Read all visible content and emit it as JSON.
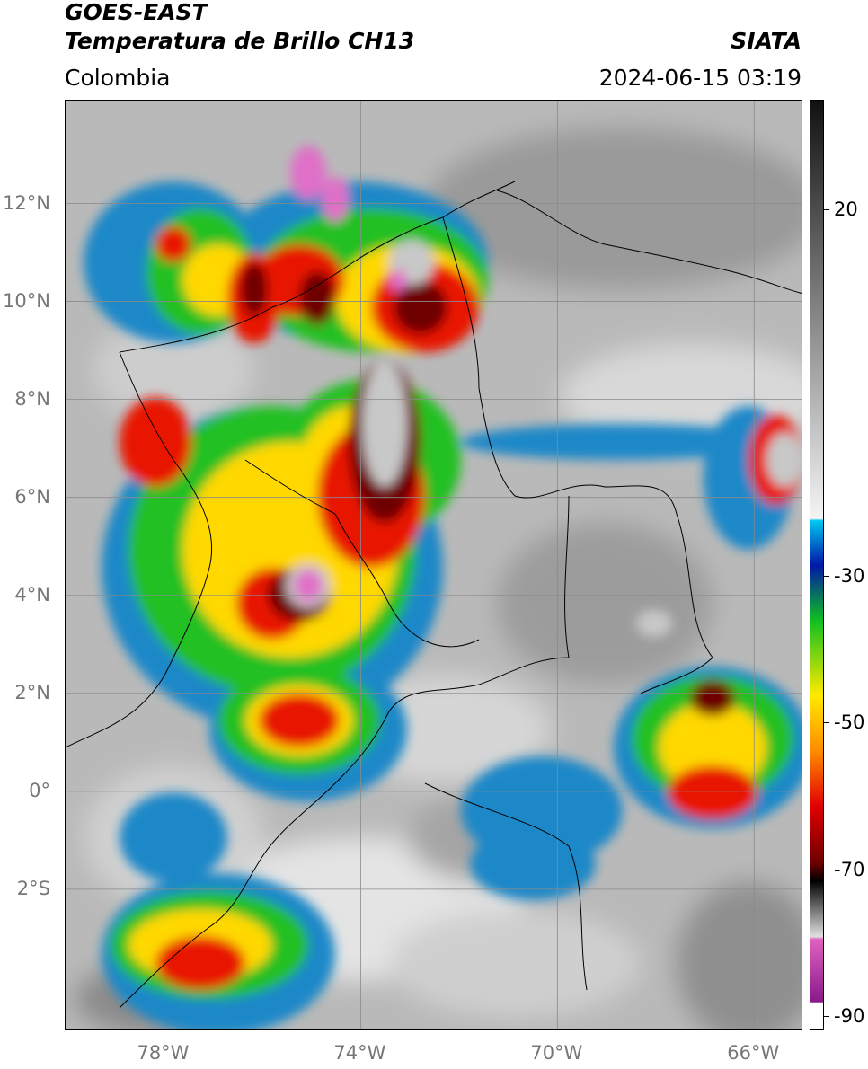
{
  "header": {
    "title_line1": "GOES-EAST",
    "title_line2": "Temperatura de Brillo CH13",
    "organization": "SIATA",
    "region": "Colombia",
    "datetime": "2024-06-15 03:19"
  },
  "map": {
    "lat_labels": [
      "12°N",
      "10°N",
      "8°N",
      "6°N",
      "4°N",
      "2°N",
      "0°",
      "2°S"
    ],
    "lat_values": [
      12,
      10,
      8,
      6,
      4,
      2,
      0,
      -2
    ],
    "lon_labels": [
      "78°W",
      "74°W",
      "70°W",
      "66°W"
    ],
    "lon_values": [
      -78,
      -74,
      -70,
      -66
    ],
    "lat_range": [
      -4.9,
      14.1
    ],
    "lon_range": [
      -80.0,
      -65.0
    ],
    "gridlines": true
  },
  "colorbar": {
    "tick_labels": [
      "20",
      "-30",
      "-50",
      "-70",
      "-90"
    ],
    "tick_values": [
      20,
      -30,
      -50,
      -70,
      -90
    ],
    "range": [
      -92,
      35
    ],
    "colors": {
      "warm_gray_top": "#2a2a2a",
      "warm_gray_bottom": "#f4f4f4",
      "cyan": "#00c8f0",
      "blue": "#0018a8",
      "green": "#10c020",
      "yellow": "#ffea00",
      "orange": "#ff8c00",
      "red": "#e00000",
      "dark_red": "#700000",
      "black": "#000000",
      "pink": "#e060c0",
      "purple": "#8a1a8a"
    }
  }
}
